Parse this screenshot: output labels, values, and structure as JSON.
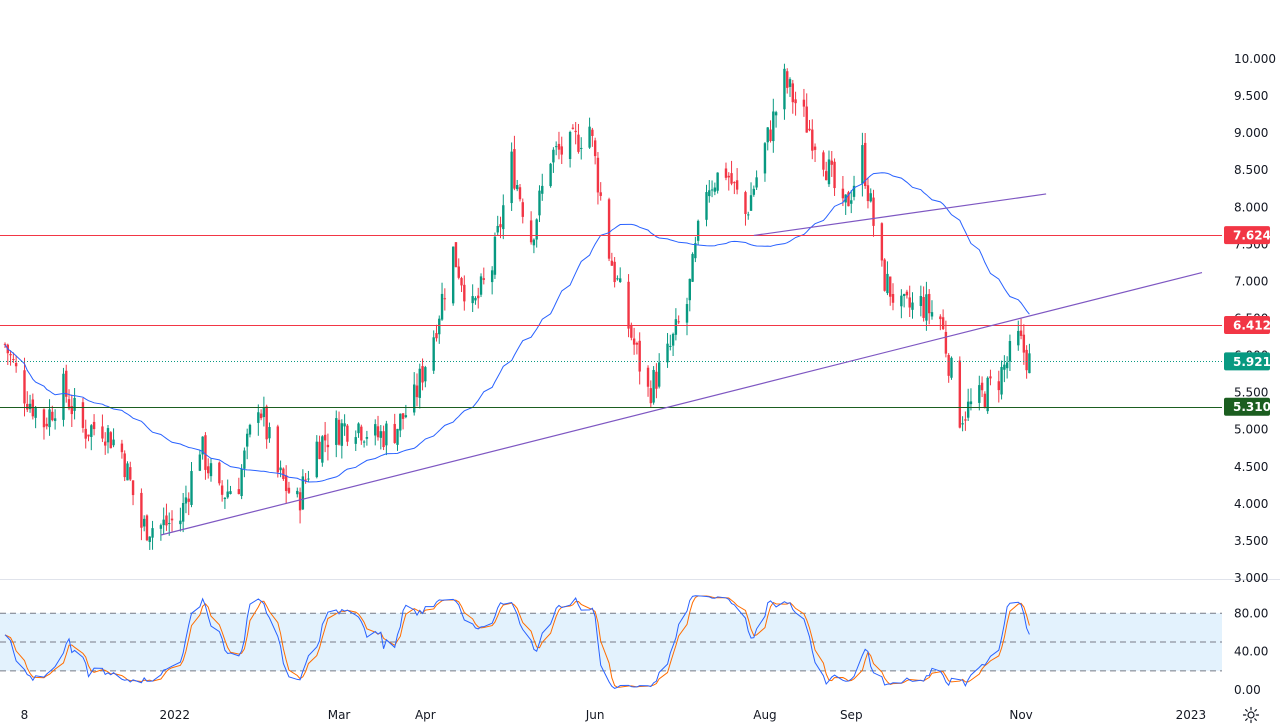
{
  "chart_data": {
    "type": "candlestick",
    "price_axis": {
      "min": 3.0,
      "max": 10.0,
      "ticks": [
        "10.000",
        "9.500",
        "9.000",
        "8.500",
        "8.000",
        "7.500",
        "7.000",
        "6.500",
        "6.000",
        "5.500",
        "5.000",
        "4.500",
        "4.000",
        "3.500",
        "3.000"
      ]
    },
    "oscillator_axis": {
      "min": 0,
      "max": 100,
      "ticks": [
        "80.00",
        "40.00",
        "0.00"
      ],
      "band": [
        20,
        80
      ]
    },
    "time_axis_labels": [
      "8",
      "2022",
      "Mar",
      "Apr",
      "Jun",
      "Aug",
      "Sep",
      "Nov",
      "2023"
    ],
    "price_levels": [
      {
        "label": "7.624",
        "value": 7.624,
        "color": "#f23645"
      },
      {
        "label": "6.412",
        "value": 6.412,
        "color": "#f23645"
      },
      {
        "label": "5.921",
        "value": 5.921,
        "color": "#089981"
      },
      {
        "label": "5.310",
        "value": 5.31,
        "color": "#1b5e20"
      }
    ],
    "trendlines": [
      {
        "name": "support",
        "points": [
          [
            "2021-12-27",
            3.58
          ],
          [
            "2023-01-05",
            7.12
          ]
        ]
      },
      {
        "name": "upper",
        "points": [
          [
            "2022-07-28",
            7.62
          ],
          [
            "2022-11-10",
            8.18
          ]
        ]
      }
    ],
    "waypoints": [
      [
        "2021-11-01",
        6.15
      ],
      [
        "2021-11-08",
        5.5
      ],
      [
        "2021-11-15",
        5.1
      ],
      [
        "2021-11-22",
        5.55
      ],
      [
        "2021-11-29",
        5.0
      ],
      [
        "2021-12-06",
        5.05
      ],
      [
        "2021-12-13",
        4.7
      ],
      [
        "2021-12-20",
        3.7
      ],
      [
        "2021-12-27",
        3.7
      ],
      [
        "2022-01-03",
        3.8
      ],
      [
        "2022-01-10",
        4.8
      ],
      [
        "2022-01-17",
        4.1
      ],
      [
        "2022-01-24",
        4.3
      ],
      [
        "2022-01-31",
        5.4
      ],
      [
        "2022-02-07",
        4.4
      ],
      [
        "2022-02-14",
        4.0
      ],
      [
        "2022-02-21",
        4.8
      ],
      [
        "2022-02-28",
        5.0
      ],
      [
        "2022-03-07",
        5.1
      ],
      [
        "2022-03-14",
        4.9
      ],
      [
        "2022-03-21",
        5.0
      ],
      [
        "2022-03-28",
        5.4
      ],
      [
        "2022-04-04",
        6.3
      ],
      [
        "2022-04-11",
        7.4
      ],
      [
        "2022-04-18",
        6.6
      ],
      [
        "2022-04-25",
        7.2
      ],
      [
        "2022-05-02",
        8.6
      ],
      [
        "2022-05-09",
        7.6
      ],
      [
        "2022-05-16",
        8.7
      ],
      [
        "2022-05-23",
        8.8
      ],
      [
        "2022-05-30",
        9.1
      ],
      [
        "2022-06-06",
        7.4
      ],
      [
        "2022-06-13",
        6.4
      ],
      [
        "2022-06-20",
        5.5
      ],
      [
        "2022-06-27",
        6.0
      ],
      [
        "2022-07-04",
        6.7
      ],
      [
        "2022-07-11",
        8.3
      ],
      [
        "2022-07-18",
        8.5
      ],
      [
        "2022-07-25",
        7.9
      ],
      [
        "2022-08-01",
        8.8
      ],
      [
        "2022-08-08",
        9.7
      ],
      [
        "2022-08-15",
        9.2
      ],
      [
        "2022-08-22",
        8.7
      ],
      [
        "2022-08-29",
        7.9
      ],
      [
        "2022-09-05",
        8.7
      ],
      [
        "2022-09-12",
        7.1
      ],
      [
        "2022-09-19",
        6.6
      ],
      [
        "2022-09-26",
        6.7
      ],
      [
        "2022-10-03",
        6.5
      ],
      [
        "2022-10-10",
        5.2
      ],
      [
        "2022-10-17",
        5.4
      ],
      [
        "2022-10-24",
        5.7
      ],
      [
        "2022-10-31",
        6.2
      ],
      [
        "2022-11-04",
        5.92
      ]
    ],
    "series": [
      {
        "name": "",
        "type": "moving-average",
        "color": "#2962ff"
      },
      {
        "name": "",
        "type": "stochastic-k",
        "color": "#2962ff"
      },
      {
        "name": "",
        "type": "stochastic-d",
        "color": "#ff6d00"
      }
    ],
    "colors": {
      "up": "#089981",
      "down": "#f23645",
      "trend": "#7e57c2",
      "band": "#e3f2fd"
    }
  }
}
